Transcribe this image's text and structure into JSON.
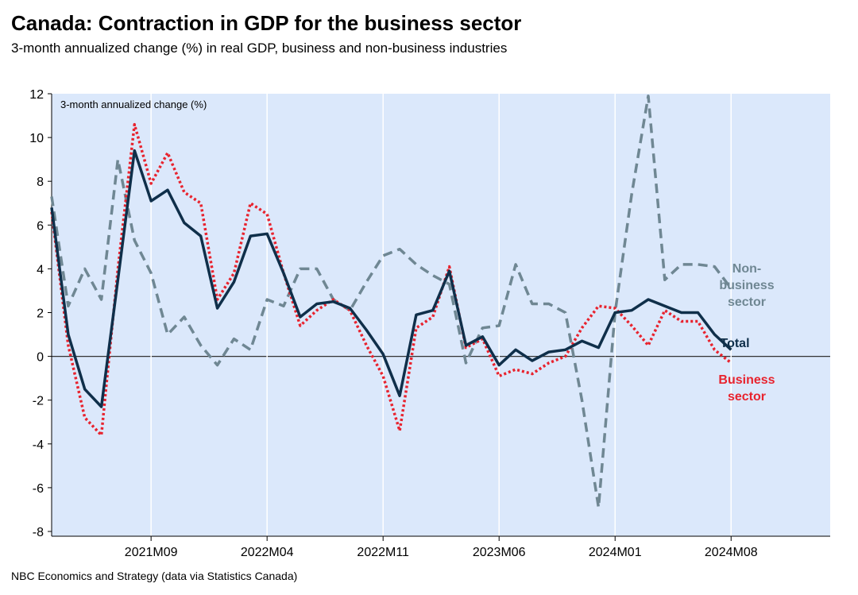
{
  "chart_data": {
    "type": "line",
    "title": "Canada: Contraction in GDP for the business sector",
    "subtitle": "3-month annualized change (%) in real GDP, business and non-business industries",
    "y_label": "3-month annualized change (%)",
    "source": "NBC Economics and Strategy (data via Statistics Canada)",
    "categories": [
      null,
      null,
      null,
      null,
      null,
      null,
      "2021M09",
      null,
      null,
      null,
      null,
      null,
      null,
      "2022M04",
      null,
      null,
      null,
      null,
      null,
      null,
      "2022M11",
      null,
      null,
      null,
      null,
      null,
      null,
      "2023M06",
      null,
      null,
      null,
      null,
      null,
      null,
      "2024M01",
      null,
      null,
      null,
      null,
      null,
      null,
      "2024M08"
    ],
    "ylim": [
      -8,
      12
    ],
    "yticks": [
      -8,
      -6,
      -4,
      -2,
      0,
      2,
      4,
      6,
      8,
      10,
      12
    ],
    "grid": true,
    "series": [
      {
        "name": "Non-business sector",
        "color": "#6f8793",
        "style": "dashed",
        "values": [
          7.3,
          2.3,
          4.0,
          2.6,
          9.0,
          5.3,
          3.8,
          1.0,
          1.8,
          0.5,
          -0.4,
          0.8,
          0.3,
          2.6,
          2.3,
          4.0,
          4.0,
          2.6,
          2.1,
          3.4,
          4.6,
          4.9,
          4.2,
          3.7,
          3.3,
          -0.3,
          1.3,
          1.4,
          4.2,
          2.4,
          2.4,
          2.0,
          -2.0,
          -6.9,
          2.0,
          7.4,
          11.9,
          3.5,
          4.2,
          4.2,
          4.1,
          3.1
        ]
      },
      {
        "name": "Business sector",
        "color": "#e8232e",
        "style": "dotted",
        "values": [
          6.6,
          0.5,
          -2.8,
          -3.6,
          4.0,
          10.6,
          7.9,
          9.3,
          7.5,
          7.0,
          2.6,
          3.8,
          7.0,
          6.5,
          3.8,
          1.4,
          2.1,
          2.6,
          2.1,
          0.5,
          -0.9,
          -3.4,
          1.3,
          1.8,
          4.1,
          0.4,
          0.8,
          -0.9,
          -0.6,
          -0.8,
          -0.3,
          0.0,
          1.3,
          2.3,
          2.2,
          1.4,
          0.5,
          2.1,
          1.6,
          1.6,
          0.3,
          -0.3
        ]
      },
      {
        "name": "Total",
        "color": "#0f2f4a",
        "style": "solid",
        "values": [
          6.8,
          1.0,
          -1.5,
          -2.3,
          3.5,
          9.4,
          7.1,
          7.6,
          6.1,
          5.5,
          2.2,
          3.4,
          5.5,
          5.6,
          3.8,
          1.8,
          2.4,
          2.5,
          2.2,
          1.2,
          0.1,
          -1.8,
          1.9,
          2.1,
          3.9,
          0.5,
          0.9,
          -0.4,
          0.3,
          -0.2,
          0.2,
          0.3,
          0.7,
          0.4,
          2.0,
          2.1,
          2.6,
          2.3,
          2.0,
          2.0,
          1.0,
          0.3
        ]
      }
    ]
  }
}
